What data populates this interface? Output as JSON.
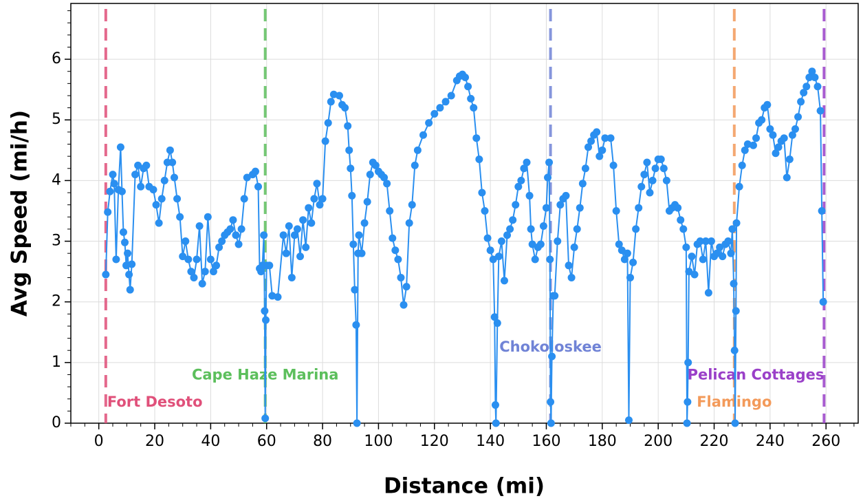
{
  "chart_data": {
    "type": "line",
    "x_label": "Distance (mi)",
    "y_label": "Avg Speed (mi/h)",
    "xlim": [
      -10,
      271.5
    ],
    "ylim": [
      0,
      6.92
    ],
    "xticks": [
      0,
      20,
      40,
      60,
      80,
      100,
      120,
      140,
      160,
      180,
      200,
      220,
      240,
      260
    ],
    "yticks": [
      0,
      1,
      2,
      3,
      4,
      5,
      6
    ],
    "grid": true,
    "markers": [
      {
        "label": "Fort Desoto",
        "x": 2.5,
        "color": "#e0507a"
      },
      {
        "label": "Cape Haze Marina",
        "x": 59.5,
        "color": "#5cbf5c"
      },
      {
        "label": "Chokoloskee",
        "x": 161.5,
        "color": "#7083d6"
      },
      {
        "label": "Flamingo",
        "x": 227.2,
        "color": "#f39a5a"
      },
      {
        "label": "Pelican Cottages",
        "x": 259.3,
        "color": "#9a40c8"
      }
    ],
    "series": [
      {
        "color": "#2a8ff0",
        "x": [
          2.5,
          3.2,
          4,
          5,
          5.5,
          6.2,
          7,
          7.8,
          8.3,
          8.8,
          9.3,
          9.8,
          10.3,
          10.8,
          11.2,
          11.8,
          13,
          14,
          15,
          16,
          17,
          18,
          19.5,
          20.5,
          21.5,
          22.5,
          23.5,
          24.5,
          25.5,
          26.3,
          27,
          28,
          29,
          30,
          31,
          32,
          33,
          34,
          35,
          36,
          37,
          38,
          39,
          40,
          41,
          42,
          43,
          44,
          45,
          46,
          47,
          48,
          49,
          50,
          51,
          52,
          53,
          55,
          56,
          57,
          57.5,
          58,
          58.5,
          59,
          59.3,
          59.5,
          59.7,
          60,
          61,
          62,
          64,
          66,
          67,
          68,
          69,
          70,
          71,
          72,
          73,
          74,
          75,
          76,
          77,
          78,
          79,
          80,
          81,
          82,
          83,
          84,
          86,
          87,
          88,
          89,
          89.5,
          90,
          90.5,
          91,
          91.5,
          92,
          92.3,
          92.7,
          93,
          94,
          95,
          96,
          97,
          98,
          99,
          100,
          101,
          102,
          103,
          104,
          105,
          106,
          107,
          108,
          109,
          110,
          111,
          112,
          113,
          114,
          116,
          118,
          120,
          122,
          124,
          126,
          128,
          129,
          130,
          131,
          132,
          133,
          134,
          135,
          136,
          137,
          138,
          139,
          140,
          141,
          141.5,
          141.8,
          142,
          142.5,
          143,
          144,
          145,
          146,
          147,
          148,
          149,
          150,
          151,
          152,
          153,
          154,
          154.5,
          155,
          156,
          157,
          158,
          159,
          160,
          160.5,
          161,
          161.3,
          161.5,
          161.7,
          162,
          162.5,
          163,
          164,
          165,
          166,
          167,
          168,
          169,
          170,
          171,
          172,
          173,
          174,
          175,
          176,
          177,
          178,
          179,
          180,
          181,
          183,
          184,
          185,
          186,
          187,
          188,
          189,
          189.5,
          190,
          191,
          192,
          193,
          194,
          195,
          196,
          197,
          198,
          199,
          200,
          201,
          202,
          203,
          204,
          205,
          206,
          207,
          208,
          209,
          210,
          210.3,
          210.5,
          210.7,
          211,
          212,
          213,
          214,
          215,
          216,
          217,
          218,
          219,
          220,
          221,
          222,
          223,
          224,
          225,
          226,
          226.5,
          227,
          227.3,
          227.5,
          227.8,
          228,
          229,
          230,
          231,
          232,
          234,
          235,
          236,
          237,
          238,
          239,
          240,
          241,
          242,
          243,
          244,
          245,
          246,
          247,
          248,
          249,
          250,
          251,
          252,
          253,
          254,
          255,
          256,
          257,
          258,
          258.5,
          259
        ],
        "values": [
          2.45,
          3.48,
          3.82,
          4.1,
          3.95,
          2.7,
          3.85,
          4.55,
          3.82,
          3.15,
          2.98,
          2.6,
          2.8,
          2.45,
          2.2,
          2.62,
          4.1,
          4.25,
          3.9,
          4.2,
          4.25,
          3.9,
          3.85,
          3.6,
          3.3,
          3.7,
          4.0,
          4.3,
          4.5,
          4.3,
          4.05,
          3.7,
          3.4,
          2.75,
          3.0,
          2.7,
          2.5,
          2.4,
          2.7,
          3.25,
          2.3,
          2.5,
          3.4,
          2.7,
          2.5,
          2.6,
          2.9,
          3.0,
          3.1,
          3.15,
          3.2,
          3.35,
          3.1,
          2.95,
          3.2,
          3.7,
          4.05,
          4.1,
          4.15,
          3.9,
          2.55,
          2.5,
          2.6,
          3.1,
          1.85,
          0.08,
          1.7,
          2.6,
          2.6,
          2.1,
          2.08,
          3.1,
          2.8,
          3.25,
          2.4,
          3.1,
          3.2,
          2.75,
          3.35,
          2.9,
          3.55,
          3.3,
          3.7,
          3.95,
          3.6,
          3.7,
          4.65,
          4.95,
          5.3,
          5.42,
          5.4,
          5.25,
          5.2,
          4.9,
          4.5,
          4.2,
          3.75,
          2.95,
          2.2,
          1.62,
          0,
          2.8,
          3.1,
          2.8,
          3.3,
          3.65,
          4.1,
          4.3,
          4.25,
          4.15,
          4.1,
          4.05,
          3.95,
          3.5,
          3.05,
          2.85,
          2.7,
          2.4,
          1.95,
          2.25,
          3.3,
          3.6,
          4.25,
          4.5,
          4.75,
          4.95,
          5.1,
          5.2,
          5.3,
          5.4,
          5.65,
          5.72,
          5.75,
          5.7,
          5.55,
          5.35,
          5.2,
          4.7,
          4.35,
          3.8,
          3.5,
          3.05,
          2.85,
          2.7,
          1.75,
          0.3,
          0,
          1.65,
          2.75,
          3.0,
          2.35,
          3.1,
          3.2,
          3.35,
          3.6,
          3.9,
          4.0,
          4.2,
          4.3,
          3.75,
          3.2,
          2.95,
          2.7,
          2.9,
          2.95,
          3.25,
          3.55,
          4.05,
          4.3,
          2.7,
          0.35,
          0,
          1.1,
          2.1,
          2.1,
          3.0,
          3.6,
          3.7,
          3.75,
          2.6,
          2.4,
          2.9,
          3.2,
          3.55,
          3.95,
          4.2,
          4.55,
          4.65,
          4.75,
          4.8,
          4.4,
          4.5,
          4.7,
          4.7,
          4.25,
          3.5,
          2.95,
          2.85,
          2.7,
          2.8,
          0.05,
          2.4,
          2.65,
          3.2,
          3.55,
          3.9,
          4.1,
          4.3,
          3.8,
          4.0,
          4.2,
          4.35,
          4.35,
          4.2,
          4.0,
          3.5,
          3.55,
          3.6,
          3.55,
          3.35,
          3.2,
          2.9,
          0,
          0.35,
          1.0,
          2.5,
          2.75,
          2.45,
          2.95,
          3.0,
          2.7,
          3.0,
          2.15,
          3.0,
          2.75,
          2.8,
          2.9,
          2.75,
          2.95,
          3.0,
          2.8,
          3.2,
          2.3,
          1.2,
          0,
          1.85,
          3.3,
          3.9,
          4.25,
          4.5,
          4.6,
          4.58,
          4.7,
          4.95,
          5.0,
          5.2,
          5.25,
          4.85,
          4.75,
          4.45,
          4.55,
          4.65,
          4.7,
          4.05,
          4.35,
          4.75,
          4.85,
          5.05,
          5.3,
          5.45,
          5.55,
          5.7,
          5.8,
          5.7,
          5.55,
          5.15,
          3.5,
          2.0
        ]
      }
    ]
  }
}
